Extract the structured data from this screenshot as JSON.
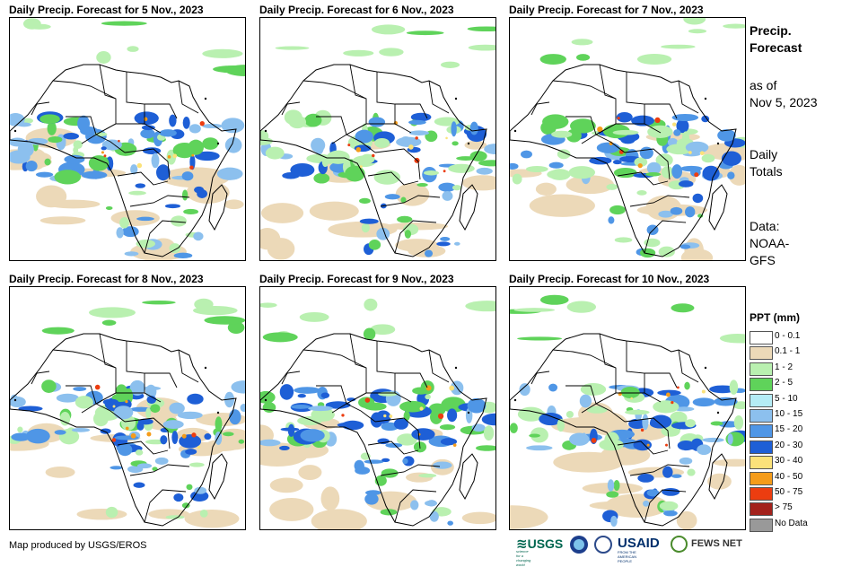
{
  "panels": [
    {
      "title": "Daily Precip. Forecast for 5 Nov., 2023",
      "seed": 5
    },
    {
      "title": "Daily Precip. Forecast for 6 Nov., 2023",
      "seed": 6
    },
    {
      "title": "Daily Precip. Forecast for 7 Nov., 2023",
      "seed": 7
    },
    {
      "title": "Daily Precip. Forecast for 8 Nov., 2023",
      "seed": 8
    },
    {
      "title": "Daily Precip. Forecast for 9 Nov., 2023",
      "seed": 9
    },
    {
      "title": "Daily Precip. Forecast for 10 Nov., 2023",
      "seed": 10
    }
  ],
  "sidebar": {
    "heading_line1": "Precip.",
    "heading_line2": "Forecast",
    "asof_line1": "as of",
    "asof_line2": "Nov 5, 2023",
    "daily_line1": "Daily",
    "daily_line2": "Totals",
    "data_line1": "Data:",
    "data_line2": "NOAA-",
    "data_line3": "GFS"
  },
  "legend": {
    "title": "PPT (mm)",
    "items": [
      {
        "label": "0 - 0.1",
        "color": "#ffffff"
      },
      {
        "label": "0.1 - 1",
        "color": "#ecd9b8"
      },
      {
        "label": "1 - 2",
        "color": "#b9f0b0"
      },
      {
        "label": "2 - 5",
        "color": "#5fd35a"
      },
      {
        "label": "5 - 10",
        "color": "#b4ecf5"
      },
      {
        "label": "10 - 15",
        "color": "#8cc0ee"
      },
      {
        "label": "15 - 20",
        "color": "#4f96e6"
      },
      {
        "label": "20 - 30",
        "color": "#1e5fd6"
      },
      {
        "label": "30 - 40",
        "color": "#fbe27a"
      },
      {
        "label": "40 - 50",
        "color": "#f59c1a"
      },
      {
        "label": "50 - 75",
        "color": "#ec3d10"
      },
      {
        "label": "> 75",
        "color": "#a3221c"
      },
      {
        "label": "No Data",
        "color": "#999999"
      }
    ]
  },
  "footer": {
    "credit": "Map produced by USGS/EROS",
    "usgs": "USGS",
    "usgs_tagline": "science for a changing world",
    "usaid": "USAID",
    "usaid_tagline": "FROM THE AMERICAN PEOPLE",
    "fews": "FEWS NET"
  }
}
